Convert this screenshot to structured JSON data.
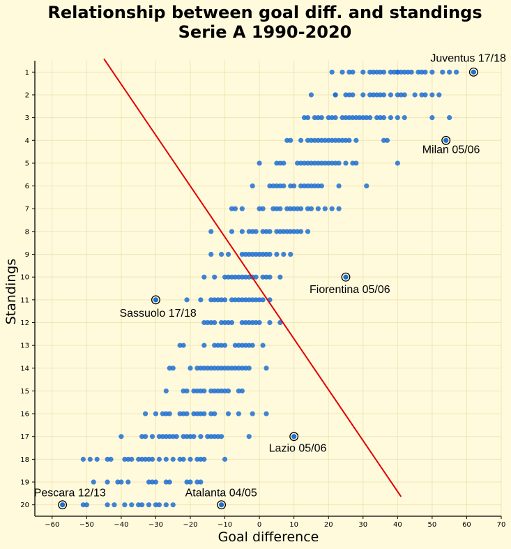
{
  "chart_data": {
    "type": "scatter",
    "title": [
      "Relationship between goal diff. and standings",
      "Serie A 1990-2020"
    ],
    "xlabel": "Goal difference",
    "ylabel": "Standings",
    "xlim": [
      -65,
      70
    ],
    "ylim": [
      20.5,
      0.5
    ],
    "xticks": [
      -60,
      -50,
      -40,
      -30,
      -20,
      -10,
      0,
      10,
      20,
      30,
      40,
      50,
      60,
      70
    ],
    "yticks": [
      1,
      2,
      3,
      4,
      5,
      6,
      7,
      8,
      9,
      10,
      11,
      12,
      13,
      14,
      15,
      16,
      17,
      18,
      19,
      20
    ],
    "grid": true,
    "colors": {
      "background": "#fffadc",
      "point": "#1f6fd1",
      "trend": "#e00000",
      "grid": "#efe6b4"
    },
    "trend_line": {
      "slope": 0.2235,
      "intercept": 10.476,
      "x_range": [
        -45,
        41
      ]
    },
    "points": {
      "1": [
        21,
        24,
        26,
        27,
        30,
        32,
        33,
        34,
        35,
        36,
        38,
        39,
        40,
        40,
        41,
        42,
        43,
        44,
        46,
        47,
        48,
        50,
        53,
        55,
        57
      ],
      "2": [
        15,
        22,
        22,
        25,
        26,
        27,
        30,
        32,
        33,
        34,
        35,
        36,
        38,
        40,
        41,
        42,
        45,
        47,
        48,
        50,
        52
      ],
      "3": [
        13,
        14,
        16,
        17,
        18,
        20,
        21,
        22,
        24,
        25,
        26,
        27,
        28,
        29,
        30,
        31,
        32,
        34,
        35,
        36,
        38,
        40,
        42,
        50,
        55
      ],
      "4": [
        8,
        9,
        12,
        14,
        15,
        16,
        17,
        18,
        19,
        20,
        21,
        22,
        23,
        24,
        25,
        26,
        28,
        36,
        37
      ],
      "5": [
        0,
        5,
        6,
        7,
        11,
        12,
        13,
        14,
        15,
        16,
        17,
        18,
        19,
        20,
        21,
        22,
        23,
        25,
        27,
        28,
        40
      ],
      "6": [
        -2,
        3,
        4,
        5,
        6,
        7,
        9,
        10,
        12,
        13,
        14,
        15,
        16,
        17,
        18,
        23,
        31
      ],
      "7": [
        -8,
        -7,
        -5,
        0,
        1,
        4,
        5,
        6,
        8,
        9,
        10,
        11,
        12,
        14,
        15,
        17,
        19,
        21,
        23
      ],
      "8": [
        -14,
        -8,
        -5,
        -3,
        -2,
        -1,
        1,
        2,
        3,
        5,
        6,
        7,
        8,
        9,
        10,
        11,
        12,
        14
      ],
      "9": [
        -14,
        -11,
        -9,
        -5,
        -4,
        -3,
        -2,
        -1,
        0,
        1,
        2,
        3,
        5,
        7,
        9
      ],
      "10": [
        -16,
        -13,
        -10,
        -9,
        -8,
        -7,
        -6,
        -5,
        -4,
        -3,
        -2,
        -1,
        1,
        2,
        3,
        6
      ],
      "11": [
        -21,
        -17,
        -14,
        -13,
        -12,
        -11,
        -10,
        -8,
        -7,
        -6,
        -5,
        -4,
        -3,
        -2,
        -1,
        0,
        1,
        3
      ],
      "12": [
        -16,
        -15,
        -14,
        -13,
        -11,
        -10,
        -9,
        -8,
        -5,
        -4,
        -3,
        -2,
        -1,
        0,
        3,
        6
      ],
      "13": [
        -23,
        -22,
        -16,
        -13,
        -12,
        -11,
        -10,
        -7,
        -6,
        -5,
        -4,
        -3,
        -2,
        1
      ],
      "14": [
        -26,
        -25,
        -20,
        -18,
        -17,
        -16,
        -15,
        -14,
        -13,
        -12,
        -11,
        -10,
        -9,
        -8,
        -7,
        -6,
        -5,
        -4,
        -3,
        2
      ],
      "15": [
        -27,
        -22,
        -21,
        -19,
        -18,
        -17,
        -16,
        -14,
        -13,
        -12,
        -11,
        -10,
        -9,
        -6,
        -5
      ],
      "16": [
        -33,
        -30,
        -28,
        -27,
        -26,
        -23,
        -22,
        -21,
        -19,
        -18,
        -17,
        -16,
        -14,
        -13,
        -9,
        -6,
        -2,
        2
      ],
      "17": [
        -40,
        -34,
        -33,
        -31,
        -29,
        -28,
        -27,
        -26,
        -25,
        -24,
        -22,
        -21,
        -20,
        -19,
        -17,
        -15,
        -14,
        -13,
        -12,
        -11,
        -3
      ],
      "18": [
        -51,
        -49,
        -47,
        -44,
        -43,
        -39,
        -38,
        -37,
        -35,
        -34,
        -33,
        -32,
        -31,
        -29,
        -27,
        -25,
        -23,
        -22,
        -20,
        -18,
        -17,
        -16,
        -10
      ],
      "19": [
        -48,
        -44,
        -41,
        -40,
        -38,
        -32,
        -31,
        -30,
        -27,
        -26,
        -21,
        -20,
        -18,
        -17
      ],
      "20": [
        -51,
        -50,
        -44,
        -42,
        -39,
        -37,
        -35,
        -34,
        -32,
        -30,
        -29,
        -27,
        -25
      ]
    },
    "annotations": [
      {
        "label": "Juventus 17/18",
        "x": 62,
        "y": 1
      },
      {
        "label": "Milan 05/06",
        "x": 54,
        "y": 4
      },
      {
        "label": "Fiorentina 05/06",
        "x": 25,
        "y": 10
      },
      {
        "label": "Sassuolo 17/18",
        "x": -30,
        "y": 11
      },
      {
        "label": "Lazio 05/06",
        "x": 10,
        "y": 17
      },
      {
        "label": "Pescara 12/13",
        "x": -57,
        "y": 20
      },
      {
        "label": "Atalanta 04/05",
        "x": -11,
        "y": 20
      }
    ]
  }
}
